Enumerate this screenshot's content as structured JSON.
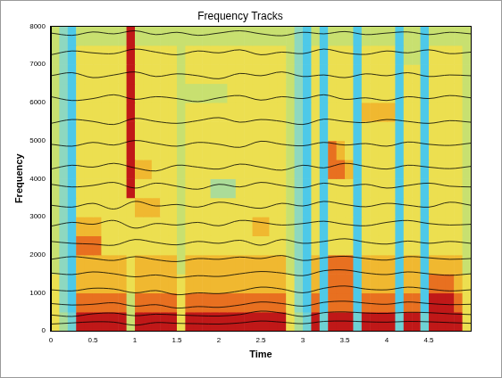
{
  "chart_data": {
    "type": "heatmap",
    "title": "Frequency Tracks",
    "x_label": "Time",
    "y_label": "Frequency",
    "xlim": [
      0,
      5
    ],
    "xticks": [
      0,
      0.5,
      1,
      1.5,
      2,
      2.5,
      3,
      3.5,
      4,
      4.5
    ],
    "ylim": [
      0,
      8000
    ],
    "yticks": [
      0,
      1000,
      2000,
      3000,
      4000,
      5000,
      6000,
      7000,
      8000
    ],
    "grid": false,
    "cells": [
      [
        6,
        4,
        2,
        9,
        9,
        9,
        9,
        9,
        9,
        5,
        9,
        9,
        9,
        9,
        9,
        6,
        9,
        9,
        9,
        9,
        9,
        9,
        9,
        9,
        9,
        9,
        9,
        9,
        6,
        4,
        2,
        9,
        2,
        9,
        9,
        9,
        2,
        9,
        9,
        9,
        9,
        2,
        9,
        9,
        2,
        9,
        9,
        9,
        9,
        6
      ],
      [
        6,
        3,
        1,
        8,
        8,
        8,
        8,
        8,
        8,
        5,
        8,
        8,
        8,
        8,
        8,
        6,
        8,
        8,
        8,
        8,
        8,
        8,
        8,
        8,
        8,
        8,
        8,
        8,
        6,
        3,
        1,
        8,
        1,
        8,
        8,
        8,
        1,
        8,
        8,
        8,
        8,
        1,
        8,
        8,
        1,
        9,
        9,
        9,
        8,
        6
      ],
      [
        6,
        3,
        1,
        7,
        7,
        7,
        7,
        7,
        7,
        6,
        7,
        7,
        7,
        7,
        7,
        6,
        7,
        7,
        7,
        7,
        7,
        7,
        7,
        7,
        7,
        7,
        7,
        7,
        6,
        3,
        1,
        7,
        1,
        8,
        8,
        8,
        1,
        7,
        7,
        7,
        7,
        1,
        7,
        7,
        1,
        8,
        8,
        8,
        7,
        6
      ],
      [
        5,
        3,
        1,
        7,
        7,
        7,
        7,
        7,
        7,
        6,
        7,
        7,
        7,
        7,
        7,
        5,
        7,
        7,
        7,
        7,
        7,
        7,
        7,
        7,
        7,
        7,
        7,
        7,
        5,
        3,
        1,
        7,
        1,
        8,
        8,
        8,
        1,
        7,
        7,
        7,
        7,
        1,
        7,
        7,
        1,
        7,
        7,
        7,
        7,
        5
      ],
      [
        5,
        3,
        1,
        8,
        8,
        8,
        6,
        6,
        6,
        6,
        6,
        6,
        6,
        6,
        6,
        5,
        6,
        6,
        6,
        6,
        6,
        6,
        6,
        6,
        6,
        6,
        6,
        6,
        5,
        3,
        1,
        6,
        1,
        6,
        6,
        6,
        1,
        6,
        6,
        6,
        6,
        1,
        6,
        6,
        1,
        6,
        6,
        6,
        6,
        5
      ],
      [
        5,
        3,
        1,
        7,
        7,
        7,
        6,
        6,
        6,
        6,
        6,
        6,
        6,
        6,
        6,
        5,
        6,
        6,
        6,
        6,
        6,
        6,
        6,
        6,
        7,
        7,
        6,
        6,
        5,
        3,
        1,
        6,
        1,
        6,
        6,
        6,
        1,
        6,
        6,
        6,
        6,
        1,
        6,
        6,
        1,
        6,
        6,
        6,
        6,
        5
      ],
      [
        5,
        3,
        1,
        6,
        6,
        6,
        6,
        6,
        6,
        6,
        7,
        7,
        7,
        6,
        6,
        5,
        6,
        6,
        6,
        6,
        6,
        6,
        6,
        6,
        6,
        6,
        6,
        6,
        5,
        3,
        1,
        6,
        1,
        6,
        6,
        6,
        1,
        6,
        6,
        6,
        6,
        1,
        6,
        6,
        1,
        6,
        6,
        6,
        6,
        5
      ],
      [
        5,
        3,
        1,
        6,
        6,
        6,
        6,
        6,
        6,
        9,
        6,
        6,
        6,
        6,
        6,
        5,
        6,
        6,
        6,
        4,
        4,
        4,
        6,
        6,
        6,
        6,
        6,
        6,
        5,
        3,
        1,
        6,
        1,
        6,
        6,
        6,
        1,
        6,
        6,
        6,
        6,
        1,
        6,
        6,
        1,
        6,
        6,
        6,
        6,
        5
      ],
      [
        5,
        3,
        1,
        6,
        6,
        6,
        6,
        6,
        6,
        9,
        7,
        7,
        6,
        6,
        6,
        5,
        6,
        6,
        6,
        6,
        6,
        6,
        6,
        6,
        6,
        6,
        6,
        6,
        5,
        3,
        1,
        6,
        1,
        8,
        8,
        7,
        1,
        6,
        6,
        6,
        6,
        1,
        6,
        6,
        1,
        6,
        6,
        6,
        6,
        5
      ],
      [
        5,
        3,
        1,
        6,
        6,
        6,
        6,
        6,
        6,
        9,
        6,
        6,
        6,
        6,
        6,
        5,
        6,
        6,
        6,
        6,
        6,
        6,
        6,
        6,
        6,
        6,
        6,
        6,
        5,
        3,
        1,
        6,
        1,
        8,
        7,
        6,
        1,
        6,
        6,
        6,
        6,
        1,
        6,
        6,
        1,
        6,
        6,
        6,
        6,
        5
      ],
      [
        5,
        3,
        1,
        6,
        6,
        6,
        6,
        6,
        6,
        9,
        6,
        6,
        6,
        6,
        6,
        5,
        6,
        6,
        6,
        6,
        6,
        6,
        6,
        6,
        6,
        6,
        6,
        6,
        5,
        3,
        1,
        6,
        1,
        6,
        6,
        6,
        1,
        6,
        6,
        6,
        6,
        1,
        6,
        6,
        1,
        6,
        6,
        6,
        6,
        5
      ],
      [
        5,
        3,
        1,
        6,
        6,
        6,
        6,
        6,
        6,
        9,
        6,
        6,
        6,
        6,
        6,
        5,
        6,
        6,
        6,
        6,
        6,
        6,
        6,
        6,
        6,
        6,
        6,
        6,
        5,
        3,
        1,
        6,
        1,
        6,
        6,
        6,
        1,
        7,
        7,
        7,
        7,
        1,
        6,
        6,
        1,
        6,
        6,
        6,
        6,
        5
      ],
      [
        5,
        3,
        1,
        6,
        6,
        6,
        6,
        6,
        6,
        9,
        6,
        6,
        6,
        6,
        6,
        5,
        5,
        5,
        5,
        5,
        5,
        6,
        6,
        6,
        6,
        6,
        6,
        6,
        5,
        3,
        1,
        6,
        1,
        6,
        6,
        6,
        1,
        6,
        6,
        6,
        6,
        1,
        6,
        6,
        1,
        6,
        6,
        6,
        6,
        5
      ],
      [
        5,
        3,
        1,
        6,
        6,
        6,
        6,
        6,
        6,
        9,
        6,
        6,
        6,
        6,
        6,
        5,
        6,
        6,
        6,
        6,
        6,
        6,
        6,
        6,
        6,
        6,
        6,
        6,
        5,
        3,
        1,
        6,
        1,
        6,
        6,
        6,
        1,
        6,
        6,
        6,
        6,
        1,
        6,
        6,
        1,
        6,
        6,
        6,
        6,
        5
      ],
      [
        5,
        3,
        1,
        6,
        6,
        6,
        6,
        6,
        6,
        9,
        6,
        6,
        6,
        6,
        6,
        5,
        6,
        6,
        6,
        6,
        6,
        6,
        6,
        6,
        6,
        6,
        6,
        6,
        5,
        3,
        1,
        6,
        1,
        6,
        6,
        6,
        1,
        6,
        6,
        6,
        6,
        1,
        5,
        5,
        1,
        6,
        6,
        6,
        6,
        5
      ],
      [
        5,
        3,
        1,
        5,
        5,
        5,
        5,
        5,
        5,
        9,
        5,
        5,
        5,
        5,
        5,
        5,
        5,
        5,
        5,
        5,
        5,
        5,
        5,
        5,
        5,
        5,
        5,
        5,
        5,
        3,
        1,
        5,
        1,
        5,
        5,
        5,
        1,
        5,
        5,
        5,
        5,
        1,
        5,
        5,
        1,
        5,
        5,
        5,
        5,
        5
      ]
    ],
    "color": "#000000",
    "x": [
      0,
      0.25,
      0.5,
      0.75,
      1,
      1.25,
      1.5,
      1.75,
      2,
      2.25,
      2.5,
      2.75,
      3,
      3.25,
      3.5,
      3.75,
      4,
      4.25,
      4.5,
      4.75,
      5
    ],
    "series": [
      {
        "values": [
          180,
          210,
          240,
          230,
          150,
          220,
          200,
          190,
          180,
          210,
          260,
          230,
          190,
          250,
          260,
          240,
          230,
          250,
          240,
          220,
          200
        ]
      },
      {
        "values": [
          420,
          380,
          450,
          470,
          400,
          440,
          420,
          400,
          390,
          430,
          520,
          470,
          380,
          480,
          500,
          470,
          460,
          490,
          480,
          450,
          430
        ]
      },
      {
        "values": [
          720,
          680,
          700,
          740,
          650,
          690,
          600,
          640,
          620,
          680,
          760,
          720,
          650,
          750,
          780,
          730,
          700,
          760,
          720,
          690,
          700
        ]
      },
      {
        "values": [
          1080,
          1050,
          1120,
          1100,
          1000,
          1060,
          950,
          1000,
          980,
          1050,
          1150,
          1100,
          1000,
          1120,
          1180,
          1100,
          1080,
          1150,
          1100,
          1050,
          1080
        ]
      },
      {
        "values": [
          1520,
          1480,
          1550,
          1500,
          1420,
          1470,
          1400,
          1450,
          1430,
          1500,
          1560,
          1520,
          1450,
          1580,
          1600,
          1520,
          1480,
          1550,
          1500,
          1460,
          1500
        ]
      },
      {
        "values": [
          1880,
          1950,
          1900,
          1850,
          1950,
          1870,
          1820,
          1900,
          1880,
          1940,
          1900,
          1980,
          1850,
          1920,
          1960,
          1900,
          1860,
          1950,
          1920,
          1880,
          1900
        ]
      },
      {
        "values": [
          2350,
          2300,
          2280,
          2250,
          2400,
          2320,
          2260,
          2350,
          2300,
          2380,
          2250,
          2400,
          2300,
          2350,
          2420,
          2330,
          2280,
          2360,
          2300,
          2350,
          2300
        ]
      },
      {
        "values": [
          2750,
          2850,
          2800,
          2900,
          2700,
          2820,
          2780,
          2850,
          2760,
          2900,
          2850,
          2780,
          2820,
          2880,
          2800,
          2760,
          2850,
          2900,
          2820,
          2780,
          2800
        ]
      },
      {
        "values": [
          3300,
          3250,
          3350,
          3200,
          3400,
          3280,
          3320,
          3250,
          3380,
          3300,
          3220,
          3350,
          3280,
          3400,
          3320,
          3260,
          3350,
          3300,
          3250,
          3380,
          3300
        ]
      },
      {
        "values": [
          3850,
          3780,
          3820,
          3900,
          3750,
          3880,
          3800,
          3720,
          3850,
          3780,
          3900,
          3820,
          3760,
          3880,
          3800,
          3850,
          3750,
          3820,
          3880,
          3800,
          3780
        ]
      },
      {
        "values": [
          4250,
          4350,
          4300,
          4400,
          4280,
          4200,
          4350,
          4300,
          4250,
          4380,
          4300,
          4220,
          4350,
          4280,
          4400,
          4320,
          4250,
          4350,
          4300,
          4260,
          4320
        ]
      },
      {
        "values": [
          4900,
          4850,
          4950,
          4880,
          5000,
          4920,
          4850,
          4950,
          4900,
          4820,
          4980,
          4900,
          4860,
          4950,
          4880,
          4920,
          4850,
          4960,
          4900,
          4870,
          4930
        ]
      },
      {
        "values": [
          5450,
          5550,
          5500,
          5420,
          5580,
          5500,
          5450,
          5520,
          5600,
          5480,
          5550,
          5500,
          5420,
          5560,
          5500,
          5470,
          5550,
          5500,
          5450,
          5520,
          5480
        ]
      },
      {
        "values": [
          6150,
          6050,
          6100,
          6200,
          6080,
          6150,
          6100,
          6020,
          6120,
          6180,
          6060,
          6150,
          6100,
          6200,
          6080,
          6120,
          6050,
          6150,
          6100,
          6180,
          6120
        ]
      },
      {
        "values": [
          6700,
          6780,
          6650,
          6720,
          6800,
          6680,
          6750,
          6700,
          6620,
          6760,
          6700,
          6800,
          6680,
          6720,
          6650,
          6750,
          6700,
          6780,
          6680,
          6720,
          6700
        ]
      },
      {
        "values": [
          7250,
          7350,
          7300,
          7280,
          7400,
          7320,
          7250,
          7350,
          7300,
          7380,
          7250,
          7320,
          7280,
          7400,
          7300,
          7260,
          7350,
          7300,
          7380,
          7280,
          7320
        ]
      },
      {
        "values": [
          7820,
          7760,
          7850,
          7800,
          7880,
          7780,
          7840,
          7760,
          7820,
          7880,
          7800,
          7750,
          7840,
          7800,
          7860,
          7780,
          7820,
          7850,
          7780,
          7840,
          7800
        ]
      }
    ]
  }
}
